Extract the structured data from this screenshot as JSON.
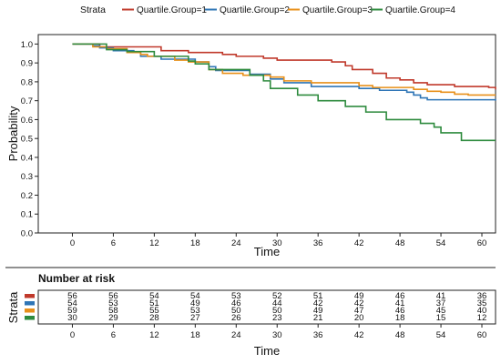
{
  "chart_data": {
    "type": "line",
    "subtype": "kaplan-meier",
    "title": "",
    "xlabel": "Time",
    "ylabel": "Probability",
    "xlim": [
      -5,
      62
    ],
    "ylim": [
      0,
      1.05
    ],
    "x_ticks": [
      0,
      6,
      12,
      18,
      24,
      30,
      36,
      42,
      48,
      54,
      60
    ],
    "y_ticks": [
      0.0,
      0.1,
      0.2,
      0.3,
      0.4,
      0.5,
      0.6,
      0.7,
      0.8,
      0.9,
      1.0
    ],
    "grid": false,
    "legend_title": "Strata",
    "legend_position": "top",
    "series": [
      {
        "name": "Quartile.Group=1",
        "color": "#c0392b",
        "steps": [
          [
            0,
            1.0
          ],
          [
            4,
            0.985
          ],
          [
            13,
            0.965
          ],
          [
            17,
            0.955
          ],
          [
            22,
            0.945
          ],
          [
            24,
            0.935
          ],
          [
            28,
            0.925
          ],
          [
            30,
            0.915
          ],
          [
            38,
            0.905
          ],
          [
            40,
            0.885
          ],
          [
            41,
            0.865
          ],
          [
            44,
            0.845
          ],
          [
            46,
            0.82
          ],
          [
            48,
            0.81
          ],
          [
            50,
            0.795
          ],
          [
            52,
            0.785
          ],
          [
            56,
            0.775
          ],
          [
            61,
            0.77
          ],
          [
            62,
            0.76
          ]
        ]
      },
      {
        "name": "Quartile.Group=2",
        "color": "#2e75b6",
        "steps": [
          [
            0,
            1.0
          ],
          [
            3,
            0.99
          ],
          [
            4,
            0.98
          ],
          [
            6,
            0.965
          ],
          [
            9,
            0.955
          ],
          [
            10,
            0.935
          ],
          [
            13,
            0.92
          ],
          [
            18,
            0.905
          ],
          [
            20,
            0.88
          ],
          [
            21,
            0.86
          ],
          [
            26,
            0.84
          ],
          [
            29,
            0.815
          ],
          [
            31,
            0.795
          ],
          [
            35,
            0.775
          ],
          [
            42,
            0.765
          ],
          [
            45,
            0.755
          ],
          [
            49,
            0.745
          ],
          [
            50,
            0.73
          ],
          [
            51,
            0.715
          ],
          [
            52,
            0.705
          ],
          [
            62,
            0.7
          ]
        ]
      },
      {
        "name": "Quartile.Group=3",
        "color": "#e8901a",
        "steps": [
          [
            0,
            1.0
          ],
          [
            3,
            0.985
          ],
          [
            5,
            0.975
          ],
          [
            8,
            0.955
          ],
          [
            10,
            0.945
          ],
          [
            11,
            0.935
          ],
          [
            15,
            0.915
          ],
          [
            17,
            0.905
          ],
          [
            20,
            0.865
          ],
          [
            22,
            0.845
          ],
          [
            25,
            0.835
          ],
          [
            29,
            0.825
          ],
          [
            31,
            0.805
          ],
          [
            35,
            0.795
          ],
          [
            42,
            0.78
          ],
          [
            44,
            0.77
          ],
          [
            50,
            0.76
          ],
          [
            52,
            0.75
          ],
          [
            54,
            0.745
          ],
          [
            56,
            0.735
          ],
          [
            58,
            0.73
          ],
          [
            62,
            0.73
          ]
        ]
      },
      {
        "name": "Quartile.Group=4",
        "color": "#2e8b3e",
        "steps": [
          [
            0,
            1.0
          ],
          [
            5,
            0.97
          ],
          [
            8,
            0.96
          ],
          [
            12,
            0.935
          ],
          [
            17,
            0.91
          ],
          [
            18,
            0.895
          ],
          [
            20,
            0.865
          ],
          [
            26,
            0.835
          ],
          [
            28,
            0.805
          ],
          [
            29,
            0.765
          ],
          [
            33,
            0.73
          ],
          [
            36,
            0.7
          ],
          [
            40,
            0.67
          ],
          [
            43,
            0.64
          ],
          [
            46,
            0.6
          ],
          [
            51,
            0.58
          ],
          [
            53,
            0.56
          ],
          [
            54,
            0.53
          ],
          [
            57,
            0.49
          ],
          [
            62,
            0.49
          ]
        ]
      }
    ],
    "risk_table": {
      "title": "Number at risk",
      "ylabel": "Strata",
      "xlabel": "Time",
      "times": [
        0,
        6,
        12,
        18,
        24,
        30,
        36,
        42,
        48,
        54,
        60
      ],
      "rows": [
        [
          56,
          56,
          54,
          54,
          53,
          52,
          51,
          49,
          46,
          41,
          36
        ],
        [
          54,
          53,
          51,
          49,
          46,
          44,
          42,
          42,
          41,
          37,
          35
        ],
        [
          59,
          58,
          55,
          53,
          50,
          50,
          49,
          47,
          46,
          45,
          40
        ],
        [
          30,
          29,
          28,
          27,
          26,
          23,
          21,
          20,
          18,
          15,
          12
        ]
      ]
    }
  }
}
